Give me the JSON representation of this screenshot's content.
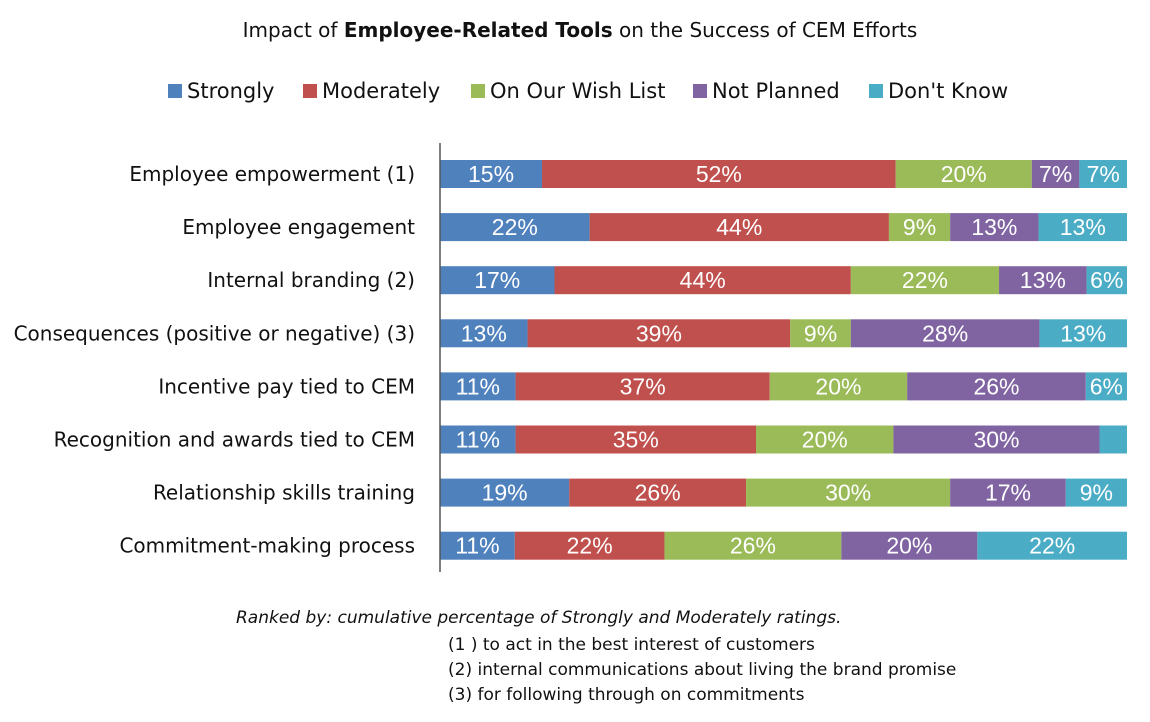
{
  "chart_data": {
    "type": "bar",
    "orientation": "horizontal",
    "stacked": "100%",
    "title": {
      "prefix": "Impact of ",
      "bold": "Employee-Related Tools",
      "suffix": " on the Success of CEM Efforts"
    },
    "legend_position": "top",
    "categories": [
      "Employee empowerment (1)",
      "Employee engagement",
      "Internal branding (2)",
      "Consequences (positive or negative) (3)",
      "Incentive pay tied to CEM",
      "Recognition and awards tied to CEM",
      "Relationship skills training",
      "Commitment-making process"
    ],
    "series": [
      {
        "name": "Strongly",
        "color": "#4f81bd",
        "values": [
          15,
          22,
          17,
          13,
          11,
          11,
          19,
          11
        ]
      },
      {
        "name": "Moderately",
        "color": "#c0504d",
        "values": [
          52,
          44,
          44,
          39,
          37,
          35,
          26,
          22
        ]
      },
      {
        "name": "On Our Wish List",
        "color": "#9bbb59",
        "values": [
          20,
          9,
          22,
          9,
          20,
          20,
          30,
          26
        ]
      },
      {
        "name": "Not Planned",
        "color": "#8064a2",
        "values": [
          7,
          13,
          13,
          28,
          26,
          30,
          17,
          20
        ]
      },
      {
        "name": "Don't Know",
        "color": "#4bacc6",
        "values": [
          7,
          13,
          6,
          13,
          6,
          4,
          9,
          22
        ]
      }
    ],
    "data_labels": [
      [
        "15%",
        "52%",
        "20%",
        "7%",
        "7%"
      ],
      [
        "22%",
        "44%",
        "9%",
        "13%",
        "13%"
      ],
      [
        "17%",
        "44%",
        "22%",
        "13%",
        "6%"
      ],
      [
        "13%",
        "39%",
        "9%",
        "28%",
        "13%"
      ],
      [
        "11%",
        "37%",
        "20%",
        "26%",
        "6%"
      ],
      [
        "11%",
        "35%",
        "20%",
        "30%",
        ""
      ],
      [
        "19%",
        "26%",
        "30%",
        "17%",
        "9%"
      ],
      [
        "11%",
        "22%",
        "26%",
        "20%",
        "22%"
      ]
    ],
    "notes": {
      "ranked": "Ranked by: cumulative percentage of Strongly and Moderately ratings.",
      "footnotes": [
        "(1 ) to act in the best interest of customers",
        "(2) internal communications about living the brand promise",
        "(3) for following through on commitments"
      ]
    }
  }
}
